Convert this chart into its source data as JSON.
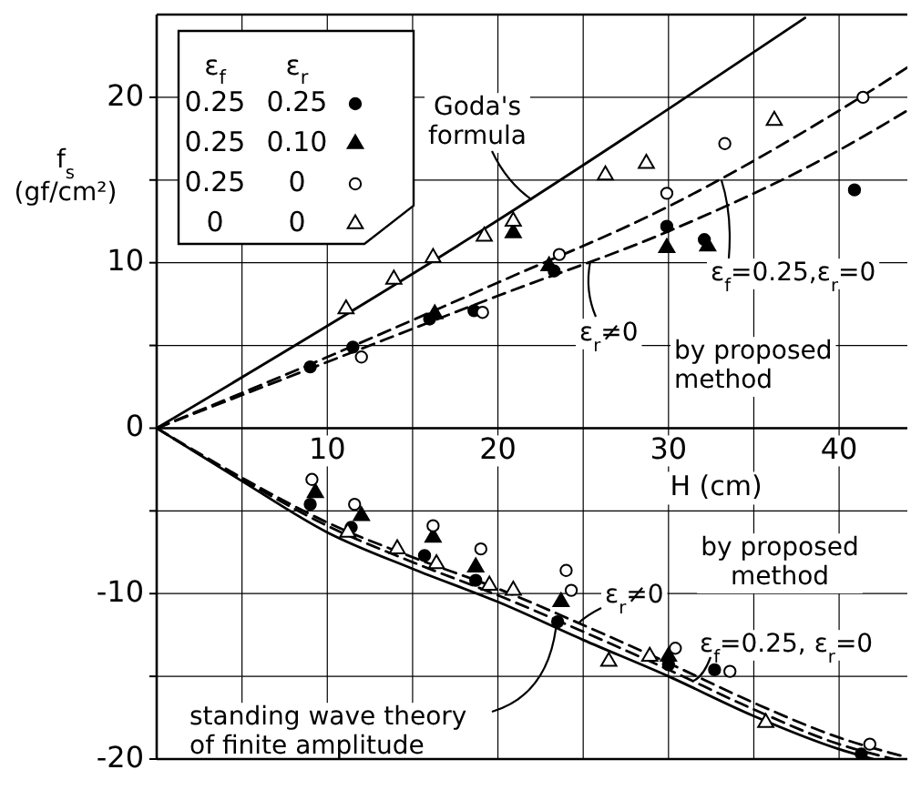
{
  "chart_data": {
    "type": "line",
    "xlabel": "H (cm)",
    "ylabel": "f$_{s}$ (gf/cm²)",
    "legend_title": "ε$_{f}$ ε$_{r}$",
    "xlim": [
      0,
      44
    ],
    "ylim": [
      -20,
      25
    ],
    "xticks": [
      {
        "value": 5,
        "label": null
      },
      10,
      {
        "value": 15,
        "label": null
      },
      20,
      {
        "value": 25,
        "label": null
      },
      30,
      {
        "value": 35,
        "label": null
      },
      40
    ],
    "yticks": [
      -20,
      {
        "value": -15,
        "label": null
      },
      -10,
      {
        "value": -5,
        "label": null
      },
      0,
      {
        "value": 5,
        "label": null
      },
      10,
      {
        "value": 15,
        "label": null
      },
      20
    ],
    "grid": true,
    "legend": "top left",
    "series": [
      {
        "color": "#000000",
        "line_style": "solid",
        "x": [
          0,
          17.6,
          38
        ],
        "values": [
          0,
          11,
          24.8
        ]
      },
      {
        "color": "#000000",
        "line_style": "dashed",
        "x": [
          0,
          10,
          20,
          30,
          40,
          44
        ],
        "values": [
          0,
          4.3,
          8.8,
          13.4,
          19.2,
          21.8
        ]
      },
      {
        "color": "#000000",
        "line_style": "dashed",
        "x": [
          0,
          10,
          20,
          30,
          40,
          44
        ],
        "values": [
          0,
          4,
          8,
          11.9,
          16.8,
          19.2
        ]
      },
      {
        "color": "#000000",
        "line_style": "solid",
        "x": [
          0,
          5,
          10,
          15,
          20,
          25,
          30,
          35,
          40,
          42
        ],
        "values": [
          0,
          -3.2,
          -6.3,
          -8.5,
          -10.5,
          -12.8,
          -15,
          -17.4,
          -19.4,
          -20
        ]
      },
      {
        "color": "#000000",
        "line_style": "dashed",
        "x": [
          0,
          5,
          10,
          15,
          20,
          25,
          30,
          35,
          40,
          43.2
        ],
        "values": [
          0,
          -3.1,
          -5.9,
          -8.1,
          -10.1,
          -12.3,
          -14.6,
          -17,
          -19.1,
          -20
        ]
      },
      {
        "color": "#000000",
        "line_style": "dashed",
        "x": [
          0,
          5,
          10,
          15,
          20,
          25,
          30,
          35,
          40,
          44
        ],
        "values": [
          0,
          -3,
          -5.7,
          -7.8,
          -9.7,
          -11.9,
          -14.2,
          -16.6,
          -18.7,
          -19.9
        ]
      },
      {
        "type": "scatter",
        "name": "0.25 0.25",
        "color": "#000000",
        "marker": "circle",
        "x": [
          9,
          11.5,
          16,
          18.6,
          23.3,
          29.9,
          32.1,
          40.9,
          9,
          11.4,
          15.7,
          18.7,
          23.5,
          30,
          32.7,
          41.3
        ],
        "values": [
          3.7,
          4.9,
          6.6,
          7.1,
          9.5,
          12.2,
          11.4,
          14.4,
          -4.6,
          -6,
          -7.7,
          -9.2,
          -11.7,
          -14.3,
          -14.6,
          -19.7
        ]
      },
      {
        "type": "scatter",
        "name": "0.25 0.10",
        "color": "#000000",
        "marker": "triangle",
        "x": [
          16.3,
          20.9,
          23,
          29.9,
          32.3,
          9.3,
          12,
          16.2,
          18.7,
          23.7,
          30
        ],
        "values": [
          6.9,
          11.8,
          9.8,
          10.9,
          11,
          -3.9,
          -5.3,
          -6.6,
          -8.4,
          -10.5,
          -13.8
        ]
      },
      {
        "type": "scatter",
        "name": "0.25 0",
        "color": "#ffffff",
        "marker": "circle",
        "x": [
          12,
          19.1,
          23.6,
          29.9,
          33.3,
          41.4,
          9.1,
          11.6,
          16.2,
          19,
          24,
          24.3,
          30.4,
          33.6,
          41.8
        ],
        "values": [
          4.3,
          7,
          10.5,
          14.2,
          17.2,
          20,
          -3.1,
          -4.6,
          -5.9,
          -7.3,
          -8.6,
          -9.8,
          -13.3,
          -14.7,
          -19.1
        ]
      },
      {
        "type": "scatter",
        "name": "0 0",
        "color": "#ffffff",
        "marker": "triangle",
        "x": [
          11.1,
          13.9,
          16.2,
          19.2,
          20.9,
          26.3,
          28.7,
          36.2,
          11.2,
          14.1,
          16.4,
          19.5,
          20.9,
          26.5,
          28.9,
          35.7
        ],
        "values": [
          7.2,
          9,
          10.3,
          11.6,
          12.5,
          15.3,
          16,
          18.6,
          -6.3,
          -7.3,
          -8.2,
          -9.5,
          -9.8,
          -14.1,
          -13.8,
          -17.8
        ]
      }
    ],
    "annotations": [
      {
        "text": "Goda's formula",
        "x": 22,
        "y": 13.8
      },
      {
        "text": "ε$_{f}$=0.25,ε$_{r}$=0",
        "x": 33.1,
        "y": 15
      },
      {
        "text": "ε$_{r}$≠0",
        "x": 25.4,
        "y": 10
      },
      "by proposed method",
      "by proposed method",
      {
        "text": "ε$_{r}$≠0",
        "x": 24.7,
        "y": -11.8
      },
      {
        "text": "ε$_{f}$=0.25, ε$_{r}$=0",
        "x": 31.4,
        "y": -15.3
      },
      {
        "text": "standing wave theory of finite amplitude",
        "x": 23.4,
        "y": -12.1
      }
    ]
  }
}
